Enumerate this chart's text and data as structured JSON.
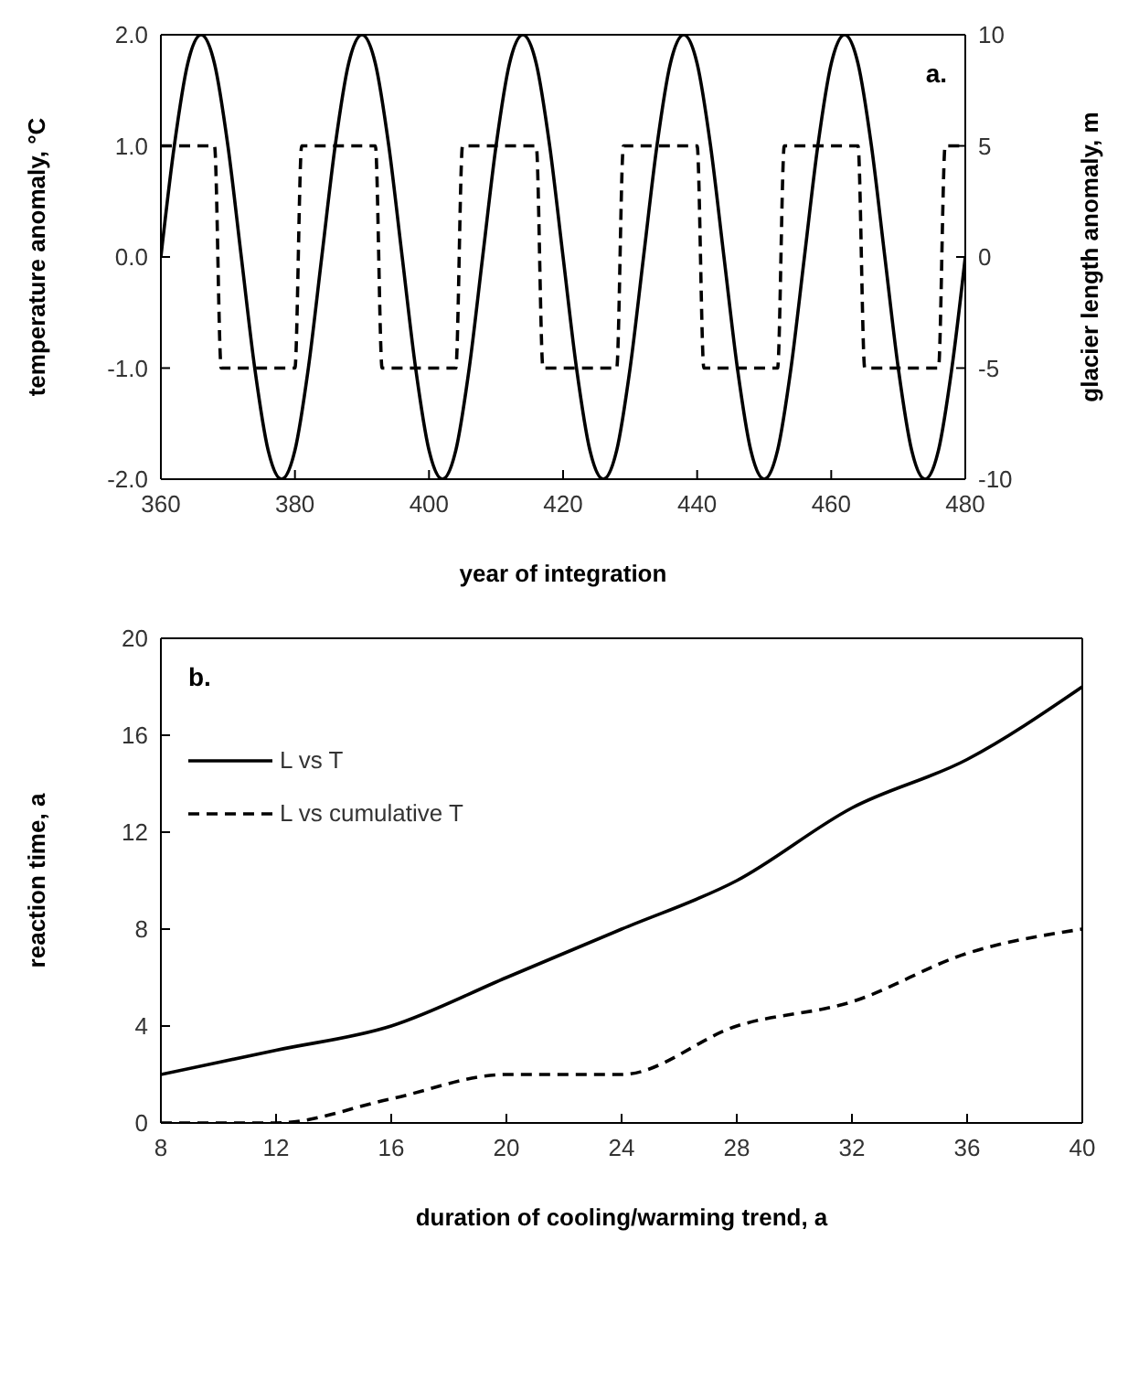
{
  "chart_data": [
    {
      "type": "line",
      "xlabel": "year of integration",
      "ylabel": "temperature anomaly, °C",
      "y2label": "glacier length anomaly, m",
      "annotations": [
        "a."
      ],
      "xlim": [
        360,
        480
      ],
      "xticks": [
        360,
        380,
        400,
        420,
        440,
        460,
        480
      ],
      "ylim": [
        -2,
        2
      ],
      "yticks": [
        {
          "value": -2,
          "label": "-2.0"
        },
        {
          "value": -1,
          "label": "-1.0"
        },
        {
          "value": 0,
          "label": "0.0"
        },
        {
          "value": 1,
          "label": "1.0"
        },
        {
          "value": 2,
          "label": "2.0"
        }
      ],
      "y2lim": [
        -10,
        10
      ],
      "y2ticks": [
        -10,
        -5,
        0,
        5,
        10
      ],
      "legend": false,
      "marker": "none",
      "series": [
        {
          "color": "#000000",
          "axis": "y2",
          "line_style": "solid",
          "x": [
            360,
            362,
            364,
            366,
            368,
            370,
            372,
            374,
            376,
            378,
            380,
            382,
            384,
            386,
            388,
            390,
            392,
            394,
            396,
            398,
            400,
            402,
            404,
            406,
            408,
            410,
            412,
            414,
            416,
            418,
            420,
            422,
            424,
            426,
            428,
            430,
            432,
            434,
            436,
            438,
            440,
            442,
            444,
            446,
            448,
            450,
            452,
            454,
            456,
            458,
            460,
            462,
            464,
            466,
            468,
            470,
            472,
            474,
            476,
            478,
            480
          ],
          "values": [
            0,
            5,
            8.7,
            10,
            8.7,
            5,
            0,
            -5,
            -8.7,
            -10,
            -8.7,
            -5,
            0,
            5,
            8.7,
            10,
            8.7,
            5,
            0,
            -5,
            -8.7,
            -10,
            -8.7,
            -5,
            0,
            5,
            8.7,
            10,
            8.7,
            5,
            0,
            -5,
            -8.7,
            -10,
            -8.7,
            -5,
            0,
            5,
            8.7,
            10,
            8.7,
            5,
            0,
            -5,
            -8.7,
            -10,
            -8.7,
            -5,
            0,
            5,
            8.7,
            10,
            8.7,
            5,
            0,
            -5,
            -8.7,
            -10,
            -8.7,
            -5,
            0
          ]
        },
        {
          "color": "#000000",
          "axis": "y",
          "line_style": "dashed",
          "x": [
            360,
            368,
            369,
            380,
            381,
            392,
            393,
            404,
            405,
            416,
            417,
            428,
            429,
            440,
            441,
            452,
            453,
            464,
            465,
            476,
            477,
            480
          ],
          "values": [
            1,
            1,
            -1,
            -1,
            1,
            1,
            -1,
            -1,
            1,
            1,
            -1,
            -1,
            1,
            1,
            -1,
            -1,
            1,
            1,
            -1,
            -1,
            1,
            1
          ]
        }
      ]
    },
    {
      "type": "line",
      "xlabel": "duration of cooling/warming trend, a",
      "ylabel": "reaction time, a",
      "annotations": [
        "b."
      ],
      "xlim": [
        8,
        40
      ],
      "xticks": [
        8,
        12,
        16,
        20,
        24,
        28,
        32,
        36,
        40
      ],
      "ylim": [
        0,
        20
      ],
      "yticks": [
        0,
        4,
        8,
        12,
        16,
        20
      ],
      "legend": "top left",
      "marker": "none",
      "x": [
        8,
        12,
        16,
        20,
        24,
        28,
        32,
        36,
        40
      ],
      "series": [
        {
          "name": "L vs T",
          "color": "#000000",
          "line_style": "solid",
          "values": [
            2,
            3,
            4,
            6,
            8,
            10,
            13,
            15,
            18
          ]
        },
        {
          "name": "L vs cumulative T",
          "color": "#000000",
          "line_style": "dashed",
          "values": [
            0,
            0,
            1,
            2,
            2,
            4,
            5,
            7,
            8
          ]
        }
      ]
    }
  ]
}
